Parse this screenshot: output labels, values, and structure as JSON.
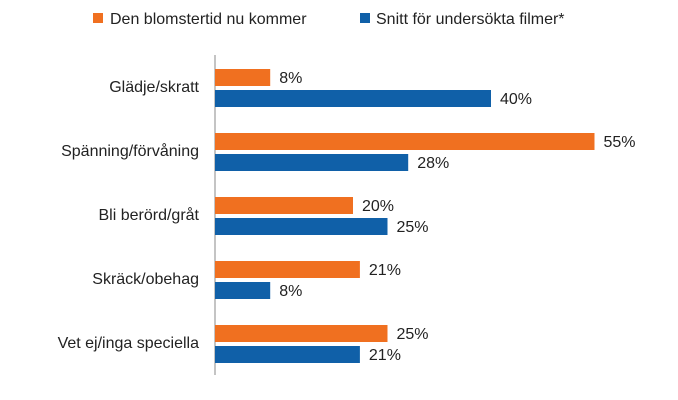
{
  "chart_data": {
    "type": "bar",
    "orientation": "horizontal",
    "categories": [
      "Glädje/skratt",
      "Spänning/förvåning",
      "Bli berörd/gråt",
      "Skräck/obehag",
      "Vet ej/inga speciella"
    ],
    "series": [
      {
        "name": "Den blomstertid nu kommer",
        "color": "#F07020",
        "values": [
          8,
          55,
          20,
          21,
          25
        ],
        "labels": [
          "8%",
          "55%",
          "20%",
          "21%",
          "25%"
        ]
      },
      {
        "name": "Snitt för undersökta filmer*",
        "color": "#1060A8",
        "values": [
          40,
          28,
          25,
          8,
          21
        ],
        "labels": [
          "40%",
          "28%",
          "25%",
          "8%",
          "21%"
        ]
      }
    ],
    "unit": "%",
    "xlim": [
      0,
      60
    ],
    "grid": false,
    "legend_position": "top"
  }
}
